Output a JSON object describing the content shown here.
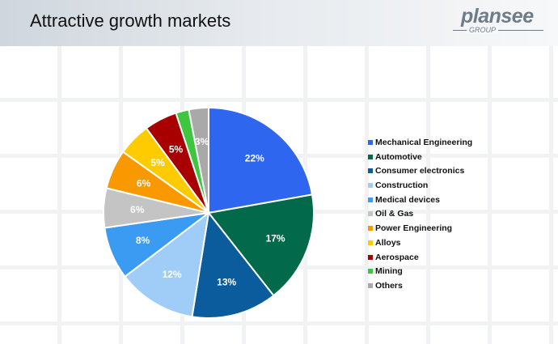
{
  "header": {
    "title": "Attractive growth markets"
  },
  "logo": {
    "name": "plansee",
    "sub": "GROUP"
  },
  "chart_data": {
    "type": "pie",
    "categories": [
      "Mechanical Engineering",
      "Automotive",
      "Consumer electronics",
      "Construction",
      "Medical devices",
      "Oil & Gas",
      "Power Engineering",
      "Alloys",
      "Aerospace",
      "Mining",
      "Others"
    ],
    "values": [
      22,
      17,
      13,
      12,
      8,
      6,
      6,
      5,
      5,
      2,
      3
    ],
    "labels": [
      "22%",
      "17%",
      "13%",
      "12%",
      "8%",
      "6%",
      "6%",
      "5%",
      "5%",
      "",
      "3%"
    ],
    "colors": [
      "#2e66f0",
      "#026a4a",
      "#0b5c9c",
      "#9fcdf8",
      "#3b9af2",
      "#c4c4c4",
      "#fa9800",
      "#fdcb00",
      "#a80000",
      "#3fc63f",
      "#a9a9a9"
    ],
    "legend_position": "right"
  }
}
